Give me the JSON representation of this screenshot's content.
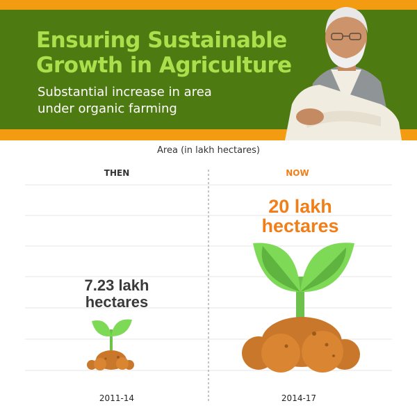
{
  "header": {
    "title_line1": "Ensuring Sustainable",
    "title_line2": "Growth in Agriculture",
    "subtitle_line1": "Substantial increase in area",
    "subtitle_line2": "under organic farming"
  },
  "colors": {
    "banner_green": "#4e7a12",
    "frame_orange": "#f39c12",
    "title_green": "#a9e04b",
    "now_orange": "#f07f1a",
    "then_gray": "#3a3a3a",
    "leaf_green": "#6cc24a",
    "soil_brown": "#c9772a"
  },
  "icons": {
    "then": "sprout-small-icon",
    "now": "sprout-large-icon"
  },
  "chart_data": {
    "type": "bar",
    "ylabel": "Area (in lakh hectares)",
    "columns": [
      {
        "heading": "THEN",
        "period": "2011-14",
        "value": 7.23,
        "label_line1": "7.23 lakh",
        "label_line2": "hectares"
      },
      {
        "heading": "NOW",
        "period": "2014-17",
        "value": 20,
        "label_line1": "20 lakh",
        "label_line2": "hectares"
      }
    ],
    "ylim": [
      0,
      20
    ],
    "grid": true
  }
}
